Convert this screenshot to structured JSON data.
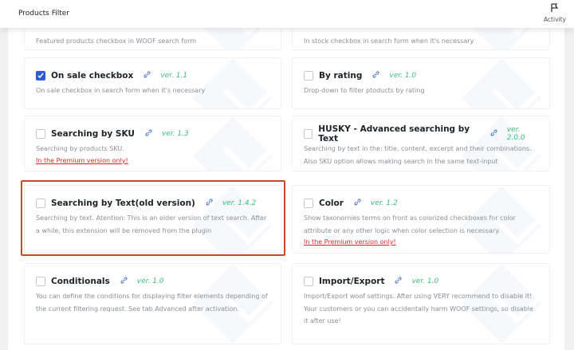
{
  "header": {
    "title": "Products Filter",
    "activity_label": "Activity"
  },
  "cards": [
    {
      "name": "",
      "desc": "Featured products checkbox in WOOF search form"
    },
    {
      "name": "",
      "desc": "In stock checkbox in search form when it's necessary"
    },
    {
      "name": "On sale checkbox",
      "ver": "ver. 1.1",
      "checked": true,
      "desc": "On sale checkbox in search form when it's necessary"
    },
    {
      "name": "By rating",
      "ver": "ver. 1.0",
      "checked": false,
      "desc": "Drop-down to filter ptoducts by rating"
    },
    {
      "name": "Searching by SKU",
      "ver": "ver. 1.3",
      "checked": false,
      "desc": "Searching by products SKU.",
      "premium": "In the Premium version only!"
    },
    {
      "name": "HUSKY - Advanced searching by Text",
      "ver": "ver. 2.0.0",
      "checked": false,
      "desc": "Searching by text in the: title, content, excerpt and their combinations. Also SKU option allows making search in the same text-input"
    },
    {
      "name": "Searching by Text(old version)",
      "ver": "ver. 1.4.2",
      "checked": false,
      "desc": "Searching by text. Atention: This is an older version of text search. After a while, this extension will be removed from the plugin"
    },
    {
      "name": "Color",
      "ver": "ver. 1.2",
      "checked": false,
      "desc": "Show taxonomies terms on front as colorized checkboxes for color attribute or any other logic when color selection is necessary.",
      "premium": "In the Premium version only!"
    },
    {
      "name": "Conditionals",
      "ver": "ver. 1.0",
      "checked": false,
      "desc": "You can define the conditions for displaying filter elements depending of the current filtering request. See tab Advanced after activation."
    },
    {
      "name": "Import/Export",
      "ver": "ver. 1.0",
      "checked": false,
      "desc": "Import/Export woof settings. After using VERY recommend to disable it! Your customers or you can accidentally harm WOOF settings, so disable it after use!"
    }
  ],
  "colors": {
    "accent": "#2e5bd8",
    "version": "#3cbf7a",
    "premium": "#e0242c",
    "highlight": "#c94a2a"
  }
}
